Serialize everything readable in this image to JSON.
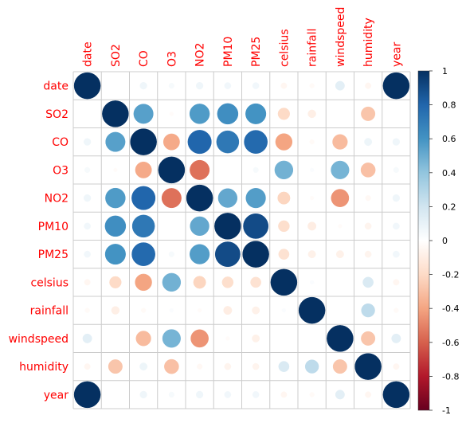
{
  "chart_data": {
    "type": "heatmap",
    "subtype": "corrplot-circle",
    "variables": [
      "date",
      "SO2",
      "CO",
      "O3",
      "NO2",
      "PM10",
      "PM25",
      "celsius",
      "rainfall",
      "windspeed",
      "humidity",
      "year"
    ],
    "matrix": [
      [
        1.0,
        0.0,
        0.07,
        0.04,
        0.07,
        0.06,
        0.06,
        -0.05,
        -0.03,
        0.12,
        -0.05,
        1.0
      ],
      [
        0.0,
        1.0,
        0.55,
        -0.02,
        0.57,
        0.62,
        0.6,
        -0.2,
        -0.09,
        0.0,
        -0.28,
        0.0
      ],
      [
        0.07,
        0.55,
        1.0,
        -0.38,
        0.8,
        0.72,
        0.78,
        -0.4,
        -0.03,
        -0.32,
        0.08,
        0.07
      ],
      [
        0.04,
        -0.02,
        -0.38,
        1.0,
        -0.55,
        0.0,
        0.04,
        0.48,
        0.02,
        0.47,
        -0.3,
        0.04
      ],
      [
        0.07,
        0.57,
        0.8,
        -0.55,
        1.0,
        0.52,
        0.56,
        -0.22,
        -0.02,
        -0.45,
        -0.04,
        0.07
      ],
      [
        0.06,
        0.62,
        0.72,
        0.0,
        0.52,
        1.0,
        0.9,
        -0.18,
        -0.1,
        -0.02,
        -0.06,
        0.06
      ],
      [
        0.06,
        0.6,
        0.78,
        0.04,
        0.56,
        0.9,
        1.0,
        -0.16,
        -0.08,
        -0.08,
        -0.06,
        0.06
      ],
      [
        -0.05,
        -0.2,
        -0.4,
        0.48,
        -0.22,
        -0.18,
        -0.16,
        1.0,
        0.02,
        0.0,
        0.16,
        -0.05
      ],
      [
        -0.03,
        -0.09,
        -0.03,
        0.02,
        -0.02,
        -0.1,
        -0.08,
        0.02,
        1.0,
        0.0,
        0.26,
        -0.03
      ],
      [
        0.12,
        0.0,
        -0.32,
        0.47,
        -0.45,
        -0.02,
        -0.08,
        0.0,
        0.0,
        1.0,
        -0.28,
        0.12
      ],
      [
        -0.05,
        -0.28,
        0.08,
        -0.3,
        -0.04,
        -0.06,
        -0.06,
        0.16,
        0.26,
        -0.28,
        1.0,
        -0.05
      ],
      [
        1.0,
        0.0,
        0.07,
        0.04,
        0.07,
        0.06,
        0.06,
        -0.05,
        -0.03,
        0.12,
        -0.05,
        1.0
      ]
    ],
    "colorbar": {
      "range": [
        -1,
        1
      ],
      "ticks": [
        "1",
        "0.8",
        "0.6",
        "0.4",
        "0.2",
        "0",
        "-0.2",
        "-0.4",
        "-0.6",
        "-0.8",
        "-1"
      ],
      "colors": [
        "#67001F",
        "#B2182B",
        "#D6604D",
        "#F4A582",
        "#FDDBC7",
        "#FFFFFF",
        "#D1E5F0",
        "#92C5DE",
        "#4393C3",
        "#2166AC",
        "#053061"
      ]
    },
    "label_color": "#FF0000",
    "grid": true,
    "legend": "right"
  }
}
